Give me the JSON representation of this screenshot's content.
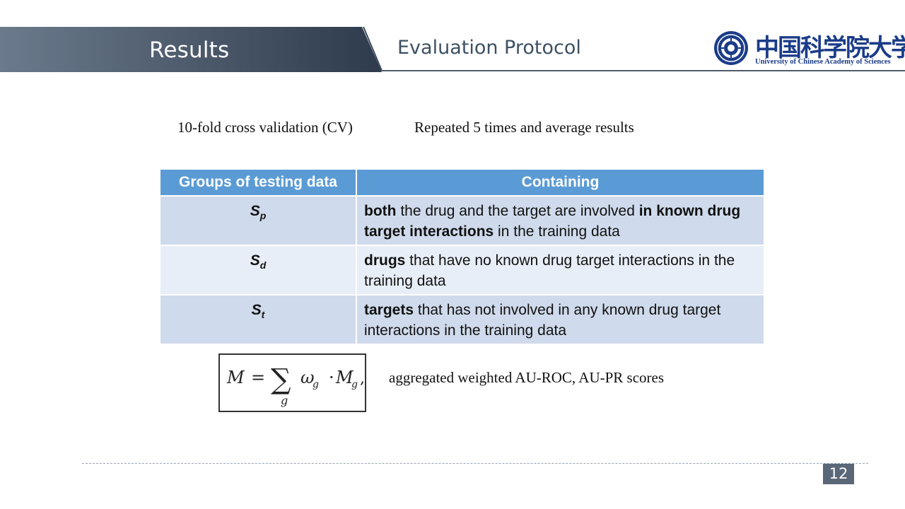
{
  "header": {
    "section_title": "Results",
    "subtitle": "Evaluation Protocol",
    "colors": {
      "band_left": "#6b7a8c",
      "band_right": "#2e3b4c",
      "rule": "#4f5c6b"
    }
  },
  "logo": {
    "chinese_name": "中国科学院大学",
    "english_name": "University of  Chinese Academy of Sciences",
    "color": "#1b3c88"
  },
  "protocol": {
    "cv": "10-fold cross validation (CV)",
    "repeat": "Repeated 5 times and average results"
  },
  "table": {
    "headers": [
      "Groups of testing data",
      "Containing"
    ],
    "header_color": "#5b9bd5",
    "rows": [
      {
        "group": "S",
        "sub": "p",
        "parts": [
          {
            "t": "both",
            "b": true
          },
          {
            "t": " the drug and the target are involved ",
            "b": false
          },
          {
            "t": "in known drug target interactions",
            "b": true
          },
          {
            "t": " in the training data",
            "b": false
          }
        ]
      },
      {
        "group": "S",
        "sub": "d",
        "parts": [
          {
            "t": "drugs",
            "b": true
          },
          {
            "t": " that have no known drug target interactions in the training data",
            "b": false
          }
        ]
      },
      {
        "group": "S",
        "sub": "t",
        "parts": [
          {
            "t": "targets",
            "b": true
          },
          {
            "t": " that has not involved in any known drug target interactions in the training data",
            "b": false
          }
        ]
      }
    ]
  },
  "formula": {
    "lhs": "M",
    "eq": "=",
    "sum": "∑",
    "sum_index": "g",
    "weight": "ω",
    "weight_sub": "g",
    "dot": "·",
    "metric": "M",
    "metric_sub": "g",
    "trail": ",",
    "description": "aggregated weighted AU-ROC, AU-PR scores"
  },
  "footer": {
    "page_number": "12"
  }
}
